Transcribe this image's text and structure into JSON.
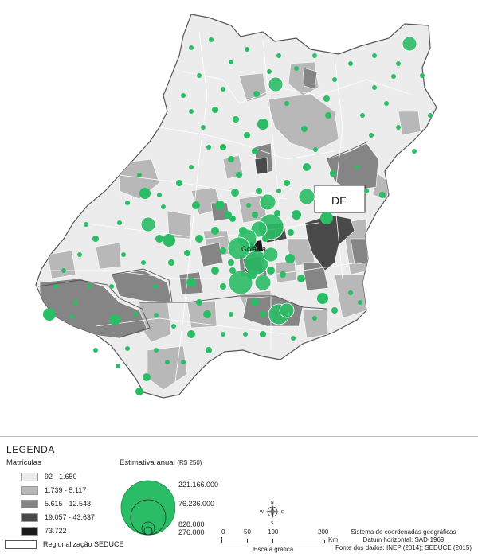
{
  "map": {
    "labels": {
      "df": "DF",
      "city": "Goiânia"
    }
  },
  "legend": {
    "title": "LEGENDA",
    "matriculas_title": "Matrículas",
    "classes": [
      {
        "label": "92 - 1.650",
        "color": "#ececec"
      },
      {
        "label": "1.739 - 5.117",
        "color": "#b8b8b8"
      },
      {
        "label": "5.615 - 12.543",
        "color": "#858585"
      },
      {
        "label": "19.057 - 43.637",
        "color": "#4a4a4a"
      },
      {
        "label": "73.722",
        "color": "#1a1a1a"
      }
    ],
    "regionalizacao": "Regionalização SEDUCE",
    "estimativa_title": "Estimativa anual",
    "estimativa_unit": "(R$ 250)",
    "bubble_values": [
      "221.166.000",
      "76.236.000",
      "828.000",
      "276.000"
    ],
    "bubble_color": "#2bbd66"
  },
  "scale": {
    "ticks": [
      "0",
      "50",
      "100",
      "200"
    ],
    "unit": "Km",
    "label": "Escala gráfica"
  },
  "compass": {
    "n": "N",
    "s": "S",
    "e": "E",
    "w": "W"
  },
  "credits": {
    "line1": "Sistema de coordenadas geográficas",
    "line2": "Datum horizontal: SAD-1969",
    "line3": "Fonte dos dados: INEP (2014); SEDUCE (2015)"
  }
}
